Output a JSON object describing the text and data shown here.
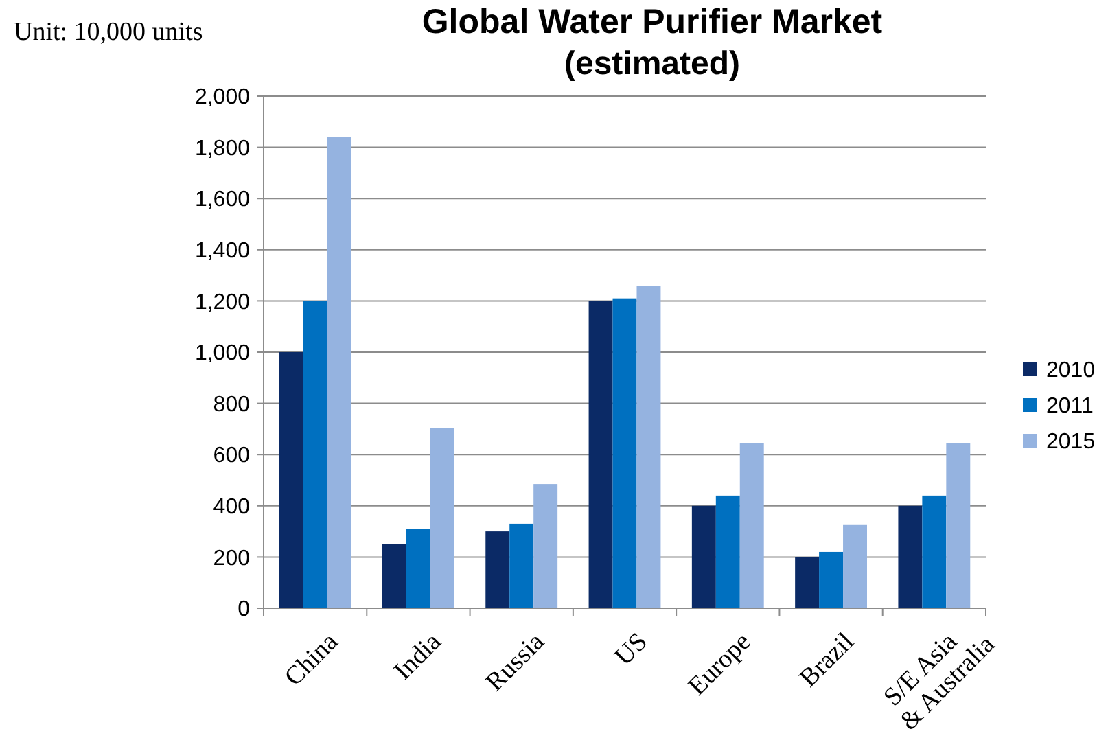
{
  "chart_data": {
    "type": "bar",
    "title": "Global Water Purifier Market",
    "subtitle": "(estimated)",
    "ylabel": "Unit: 10,000 units",
    "categories": [
      "China",
      "India",
      "Russia",
      "US",
      "Europe",
      "Brazil",
      "S/E Asia\n& Australia"
    ],
    "series": [
      {
        "name": "2010",
        "color": "#0b2a66",
        "values": [
          1000,
          250,
          300,
          1200,
          400,
          200,
          400
        ]
      },
      {
        "name": "2011",
        "color": "#0070c0",
        "values": [
          1200,
          310,
          330,
          1210,
          440,
          220,
          440
        ]
      },
      {
        "name": "2015",
        "color": "#95b3e0",
        "values": [
          1840,
          705,
          485,
          1260,
          645,
          325,
          645
        ]
      }
    ],
    "ylim": [
      0,
      2000
    ],
    "yticks": [
      {
        "value": 0,
        "label": "0"
      },
      {
        "value": 200,
        "label": "200"
      },
      {
        "value": 400,
        "label": "400"
      },
      {
        "value": 600,
        "label": "600"
      },
      {
        "value": 800,
        "label": "800"
      },
      {
        "value": 1000,
        "label": "1,000"
      },
      {
        "value": 1200,
        "label": "1,200"
      },
      {
        "value": 1400,
        "label": "1,400"
      },
      {
        "value": 1600,
        "label": "1,600"
      },
      {
        "value": 1800,
        "label": "1,800"
      },
      {
        "value": 2000,
        "label": "2,000"
      }
    ],
    "grid": "y",
    "legend": "right"
  }
}
